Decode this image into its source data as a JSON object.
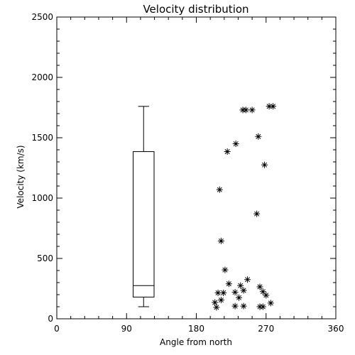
{
  "chart_data": {
    "type": "scatter",
    "title": "Velocity distribution",
    "xlabel": "Angle from north",
    "ylabel": "Velocity (km/s)",
    "xlim": [
      0,
      360
    ],
    "ylim": [
      0,
      2500
    ],
    "xticks": [
      0,
      90,
      180,
      270,
      360
    ],
    "yticks": [
      0,
      500,
      1000,
      1500,
      2000,
      2500
    ],
    "x_tick_labels": [
      "0",
      "90",
      "180",
      "270",
      "360"
    ],
    "y_tick_labels": [
      "0",
      "500",
      "1000",
      "1500",
      "2000",
      "2500"
    ],
    "grid": false,
    "legend": "none",
    "marker": "asterisk",
    "color": "#000000",
    "boxplot": {
      "x": 112,
      "box_width": 27,
      "whisker_low": 100,
      "q1": 180,
      "median": 275,
      "q3": 1385,
      "whisker_high": 1760,
      "cap_width": 14
    },
    "points": [
      {
        "x": 274,
        "y": 1760
      },
      {
        "x": 279,
        "y": 1760
      },
      {
        "x": 240,
        "y": 1730
      },
      {
        "x": 244,
        "y": 1730
      },
      {
        "x": 252,
        "y": 1730
      },
      {
        "x": 260,
        "y": 1510
      },
      {
        "x": 231,
        "y": 1450
      },
      {
        "x": 220,
        "y": 1385
      },
      {
        "x": 268,
        "y": 1275
      },
      {
        "x": 210,
        "y": 1070
      },
      {
        "x": 258,
        "y": 870
      },
      {
        "x": 212,
        "y": 645
      },
      {
        "x": 217,
        "y": 405
      },
      {
        "x": 246,
        "y": 325
      },
      {
        "x": 222,
        "y": 290
      },
      {
        "x": 237,
        "y": 275
      },
      {
        "x": 262,
        "y": 265
      },
      {
        "x": 241,
        "y": 235
      },
      {
        "x": 208,
        "y": 215
      },
      {
        "x": 215,
        "y": 215
      },
      {
        "x": 230,
        "y": 220
      },
      {
        "x": 266,
        "y": 225
      },
      {
        "x": 270,
        "y": 195
      },
      {
        "x": 235,
        "y": 175
      },
      {
        "x": 212,
        "y": 155
      },
      {
        "x": 204,
        "y": 135
      },
      {
        "x": 276,
        "y": 130
      },
      {
        "x": 230,
        "y": 105
      },
      {
        "x": 241,
        "y": 105
      },
      {
        "x": 262,
        "y": 100
      },
      {
        "x": 266,
        "y": 100
      },
      {
        "x": 206,
        "y": 95
      }
    ]
  }
}
